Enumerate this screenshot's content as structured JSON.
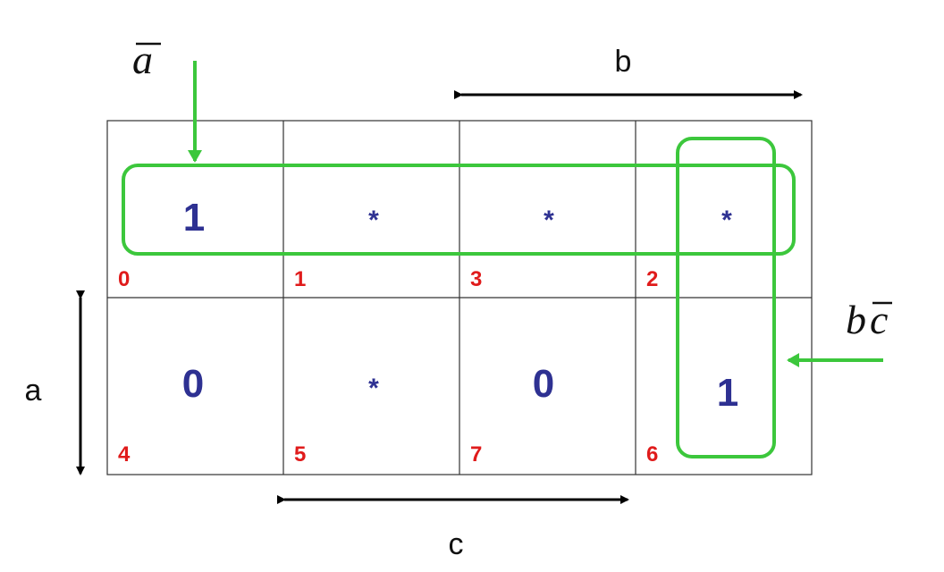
{
  "variables": {
    "a": "a",
    "b": "b",
    "c": "c"
  },
  "cells": [
    {
      "index": "0",
      "value": "1"
    },
    {
      "index": "1",
      "value": "*"
    },
    {
      "index": "3",
      "value": "*"
    },
    {
      "index": "2",
      "value": "*"
    },
    {
      "index": "4",
      "value": "0"
    },
    {
      "index": "5",
      "value": "*"
    },
    {
      "index": "7",
      "value": "0"
    },
    {
      "index": "6",
      "value": "1"
    }
  ],
  "groups": [
    {
      "term_first": "a",
      "term_second": ""
    },
    {
      "term_first": "b",
      "term_second": "c"
    }
  ],
  "colors": {
    "group": "#3cc73c",
    "value": "#2e3192",
    "index": "#e01b1b",
    "grid": "#333333"
  }
}
